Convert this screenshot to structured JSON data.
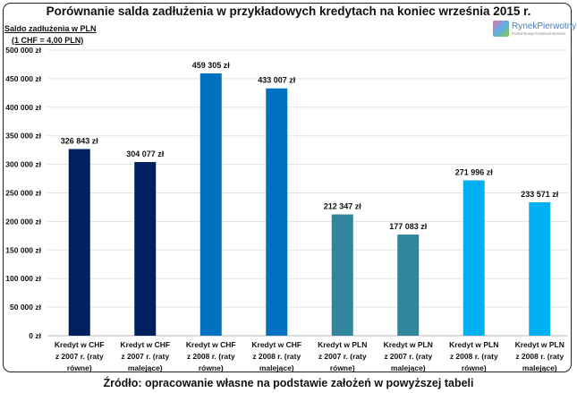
{
  "title": "Porównanie salda zadłużenia w przykładowych kredytach na koniec września 2015 r.",
  "y_axis_label": [
    "Saldo zadłużenia w PLN",
    "(1 CHF = 4,00 PLN)"
  ],
  "logo": {
    "name": "RynekPierwotny",
    "subtitle": "Portal Nowych Nieruchomości"
  },
  "source": "Źródło: opracowanie własne na podstawie założeń w powyższej tabeli",
  "chart_data": {
    "type": "bar",
    "title": "Porównanie salda zadłużenia w przykładowych kredytach na koniec września 2015 r.",
    "ylabel": "Saldo zadłużenia w PLN (1 CHF = 4,00 PLN)",
    "ylim": [
      0,
      500000
    ],
    "yticks": [
      0,
      50000,
      100000,
      150000,
      200000,
      250000,
      300000,
      350000,
      400000,
      450000,
      500000
    ],
    "ytick_labels": [
      "0 zł",
      "50 000 zł",
      "100 000 zł",
      "150 000 zł",
      "200 000 zł",
      "250 000 zł",
      "300 000 zł",
      "350 000 zł",
      "400 000 zł",
      "450 000 zł",
      "500 000 zł"
    ],
    "grid": true,
    "categories": [
      [
        "Kredyt w CHF",
        "z 2007 r. (raty",
        "równe)"
      ],
      [
        "Kredyt w CHF",
        "z 2007 r. (raty",
        "malejące)"
      ],
      [
        "Kredyt w CHF",
        "z 2008 r. (raty",
        "równe)"
      ],
      [
        "Kredyt w CHF",
        "z 2008 r. (raty",
        "malejące)"
      ],
      [
        "Kredyt w PLN",
        "z 2007 r. (raty",
        "równe)"
      ],
      [
        "Kredyt w PLN",
        "z 2007 r. (raty",
        "malejące)"
      ],
      [
        "Kredyt w PLN",
        "z 2008 r. (raty",
        "równe)"
      ],
      [
        "Kredyt w PLN",
        "z 2008 r. (raty",
        "malejące)"
      ]
    ],
    "values": [
      326843,
      304077,
      459305,
      433007,
      212347,
      177083,
      271996,
      233571
    ],
    "value_labels": [
      "326 843 zł",
      "304 077 zł",
      "459 305 zł",
      "433 007 zł",
      "212 347 zł",
      "177 083 zł",
      "271 996 zł",
      "233 571 zł"
    ],
    "colors": [
      "#002060",
      "#002060",
      "#0070C0",
      "#0070C0",
      "#31859C",
      "#31859C",
      "#00B0F0",
      "#00B0F0"
    ]
  }
}
